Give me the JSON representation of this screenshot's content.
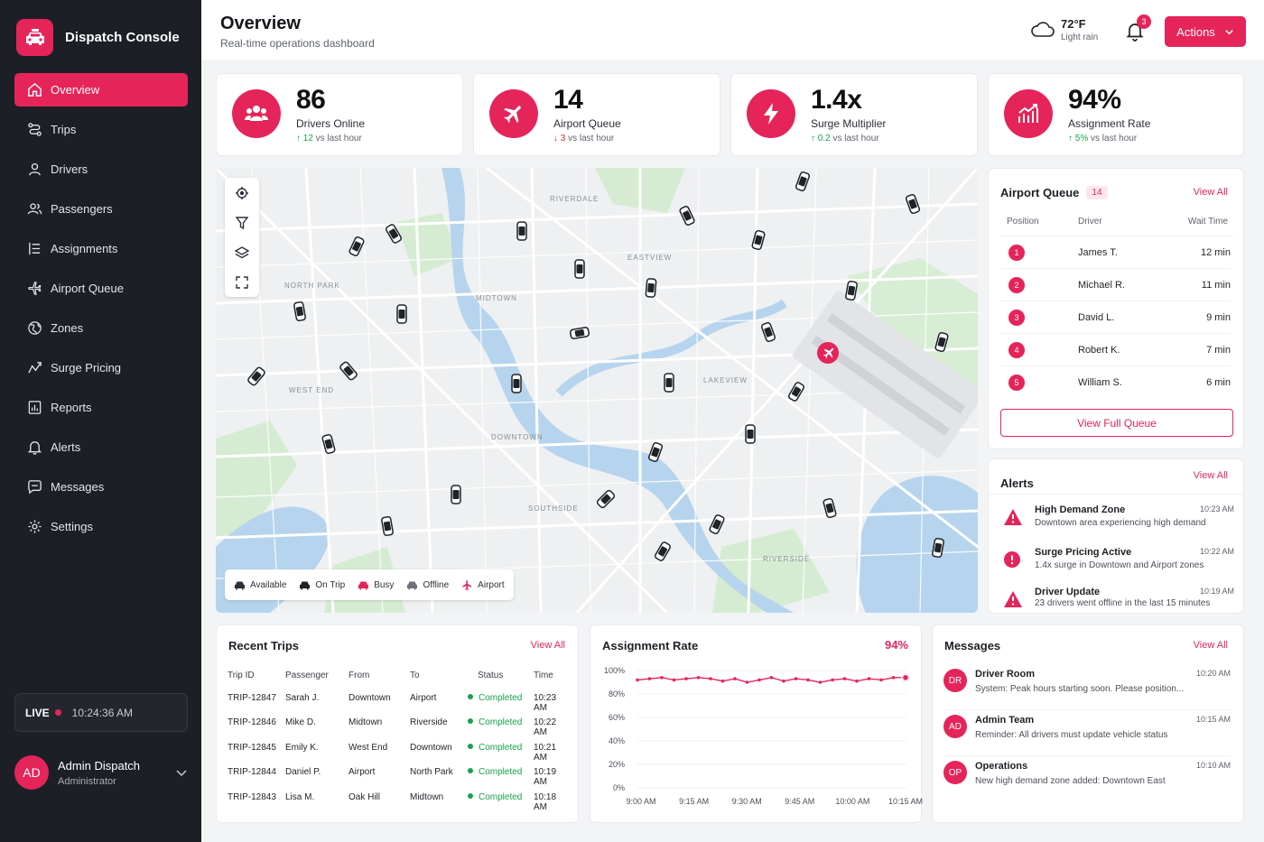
{
  "brand": {
    "name": "Dispatch Console"
  },
  "nav": [
    {
      "label": "Overview",
      "icon": "home-icon",
      "key": "overview"
    },
    {
      "label": "Trips",
      "icon": "route-icon",
      "key": "trips"
    },
    {
      "label": "Drivers",
      "icon": "user-icon",
      "key": "drivers"
    },
    {
      "label": "Passengers",
      "icon": "users-icon",
      "key": "passengers"
    },
    {
      "label": "Assignments",
      "icon": "list-icon",
      "key": "assignments"
    },
    {
      "label": "Airport Queue",
      "icon": "plane-icon",
      "key": "airport-queue"
    },
    {
      "label": "Zones",
      "icon": "globe-icon",
      "key": "zones"
    },
    {
      "label": "Surge Pricing",
      "icon": "trend-icon",
      "key": "surge-pricing"
    },
    {
      "label": "Reports",
      "icon": "report-icon",
      "key": "reports"
    },
    {
      "label": "Alerts",
      "icon": "bell-icon",
      "key": "alerts"
    },
    {
      "label": "Messages",
      "icon": "chat-icon",
      "key": "messages"
    },
    {
      "label": "Settings",
      "icon": "gear-icon",
      "key": "settings"
    }
  ],
  "live": {
    "label": "LIVE",
    "time": "10:24:36 AM"
  },
  "user": {
    "initials": "AD",
    "name": "Admin Dispatch",
    "role": "Administrator"
  },
  "header": {
    "title": "Overview",
    "subtitle": "Real-time operations dashboard",
    "weather_temp": "72°F",
    "weather_cond": "Light rain",
    "notif_count": "3",
    "actions_label": "Actions"
  },
  "stats": [
    {
      "value": "86",
      "label": "Drivers Online",
      "delta": "12",
      "delta_suffix": " vs last hour",
      "dir": "up",
      "icon": "drivers-icon"
    },
    {
      "value": "14",
      "label": "Airport Queue",
      "delta": "3",
      "delta_suffix": " vs last hour",
      "dir": "down",
      "icon": "plane-icon"
    },
    {
      "value": "1.4x",
      "label": "Surge Multiplier",
      "delta": "0.2",
      "delta_suffix": " vs last hour",
      "dir": "up",
      "icon": "bolt-icon"
    },
    {
      "value": "94%",
      "label": "Assignment Rate",
      "delta": "5%",
      "delta_suffix": " vs last hour",
      "dir": "up",
      "icon": "bar-chart-icon"
    }
  ],
  "map": {
    "areas": [
      "RIVERDALE",
      "EASTVIEW",
      "NORTH PARK",
      "MIDTOWN",
      "LAKEVIEW",
      "WEST END",
      "DOWNTOWN",
      "SOUTHSIDE",
      "RIVERSIDE"
    ],
    "legend": [
      "Available",
      "On Trip",
      "Busy",
      "Offline",
      "Airport"
    ]
  },
  "queue": {
    "title": "Airport Queue",
    "count": "14",
    "view_all": "View All",
    "headers": {
      "position": "Position",
      "driver": "Driver",
      "wait": "Wait Time"
    },
    "rows": [
      {
        "pos": "1",
        "driver": "James T.",
        "wait": "12 min"
      },
      {
        "pos": "2",
        "driver": "Michael R.",
        "wait": "11 min"
      },
      {
        "pos": "3",
        "driver": "David L.",
        "wait": "9 min"
      },
      {
        "pos": "4",
        "driver": "Robert K.",
        "wait": "7 min"
      },
      {
        "pos": "5",
        "driver": "William S.",
        "wait": "6 min"
      }
    ],
    "button": "View Full Queue"
  },
  "alerts": {
    "title": "Alerts",
    "view_all": "View All",
    "items": [
      {
        "title": "High Demand Zone",
        "time": "10:23 AM",
        "desc": "Downtown area experiencing high demand",
        "icon": "warning-icon"
      },
      {
        "title": "Surge Pricing Active",
        "time": "10:22 AM",
        "desc": "1.4x surge in Downtown and Airport zones",
        "icon": "info-icon"
      },
      {
        "title": "Driver Update",
        "time": "10:19 AM",
        "desc": "23 drivers went offline in the last 15 minutes",
        "icon": "warning-icon"
      }
    ]
  },
  "trips": {
    "title": "Recent Trips",
    "view_all": "View All",
    "headers": {
      "id": "Trip ID",
      "passenger": "Passenger",
      "from": "From",
      "to": "To",
      "status": "Status",
      "time": "Time"
    },
    "rows": [
      {
        "id": "TRIP-12847",
        "passenger": "Sarah J.",
        "from": "Downtown",
        "to": "Airport",
        "status": "Completed",
        "time": "10:23 AM"
      },
      {
        "id": "TRIP-12846",
        "passenger": "Mike D.",
        "from": "Midtown",
        "to": "Riverside",
        "status": "Completed",
        "time": "10:22 AM"
      },
      {
        "id": "TRIP-12845",
        "passenger": "Emily K.",
        "from": "West End",
        "to": "Downtown",
        "status": "Completed",
        "time": "10:21 AM"
      },
      {
        "id": "TRIP-12844",
        "passenger": "Daniel P.",
        "from": "Airport",
        "to": "North Park",
        "status": "Completed",
        "time": "10:19 AM"
      },
      {
        "id": "TRIP-12843",
        "passenger": "Lisa M.",
        "from": "Oak Hill",
        "to": "Midtown",
        "status": "Completed",
        "time": "10:18 AM"
      }
    ]
  },
  "assignment": {
    "title": "Assignment Rate",
    "value": "94%"
  },
  "chart_data": {
    "type": "line",
    "title": "Assignment Rate",
    "y_ticks": [
      "100%",
      "80%",
      "60%",
      "40%",
      "20%",
      "0%"
    ],
    "x_ticks": [
      "9:00 AM",
      "9:15 AM",
      "9:30 AM",
      "9:45 AM",
      "10:00 AM",
      "10:15 AM"
    ],
    "ylim": [
      0,
      100
    ],
    "values": [
      92,
      93,
      94,
      92,
      93,
      94,
      93,
      91,
      93,
      90,
      92,
      94,
      91,
      93,
      92,
      90,
      92,
      93,
      91,
      93,
      92,
      94,
      94
    ],
    "color": "#e5245a",
    "grid": true
  },
  "messages": {
    "title": "Messages",
    "view_all": "View All",
    "items": [
      {
        "initials": "DR",
        "name": "Driver Room",
        "time": "10:20 AM",
        "text": "System: Peak hours starting soon. Please position..."
      },
      {
        "initials": "AD",
        "name": "Admin Team",
        "time": "10:15 AM",
        "text": "Reminder: All drivers must update vehicle status"
      },
      {
        "initials": "OP",
        "name": "Operations",
        "time": "10:10 AM",
        "text": "New high demand zone added: Downtown East"
      }
    ]
  },
  "colors": {
    "accent": "#e5245a",
    "sidebar": "#1d1f26",
    "success": "#16a34a",
    "danger": "#dc2626"
  }
}
